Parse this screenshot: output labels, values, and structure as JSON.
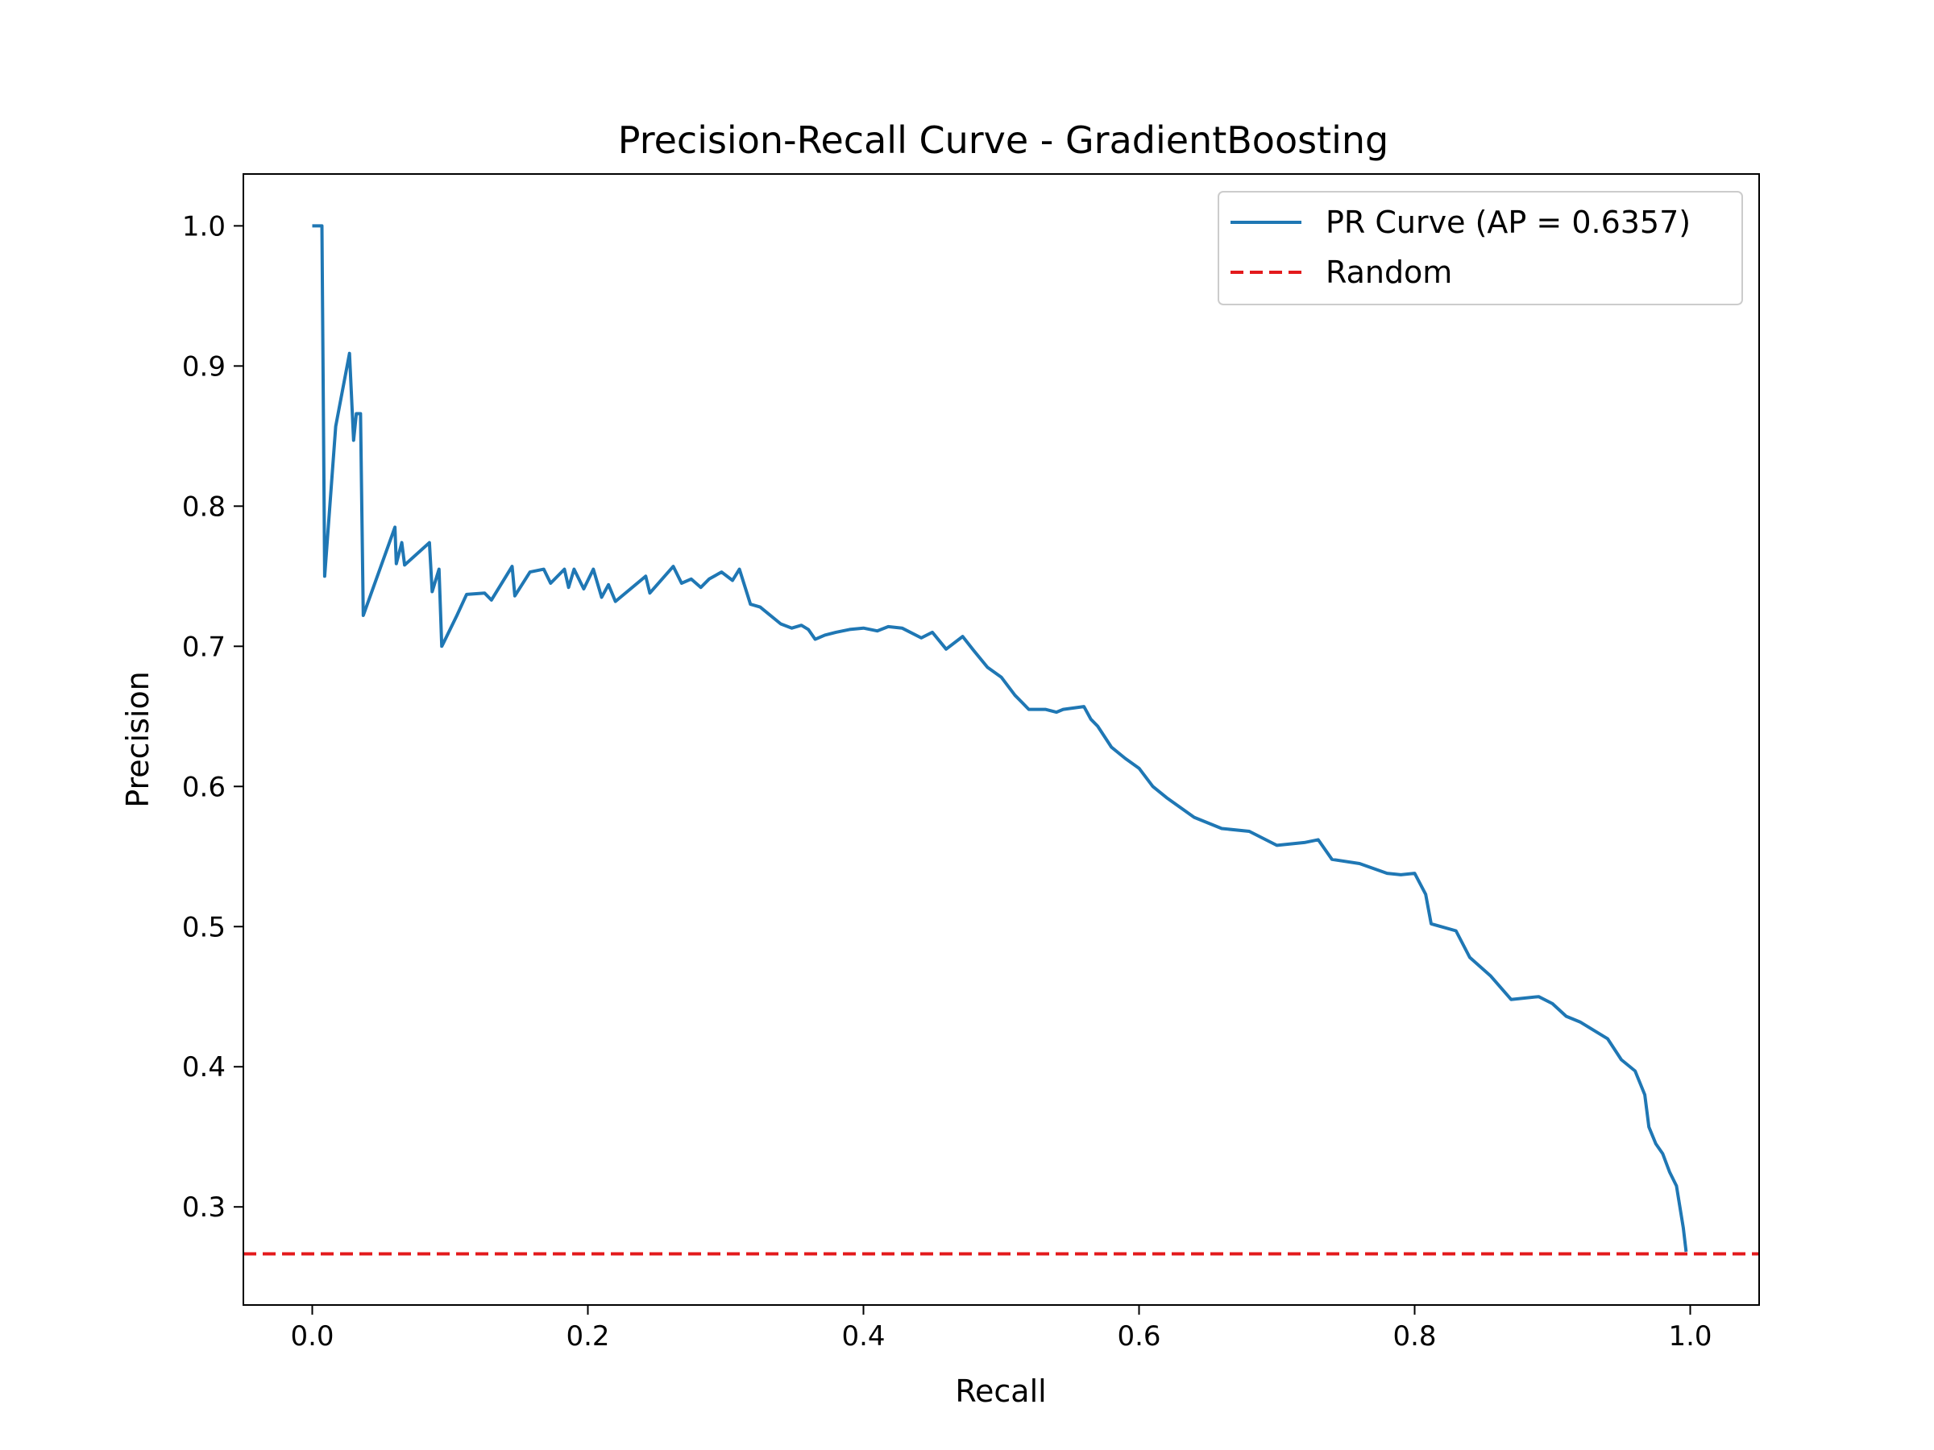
{
  "chart_data": {
    "type": "line",
    "title": "Precision-Recall Curve - GradientBoosting",
    "xlabel": "Recall",
    "ylabel": "Precision",
    "xlim": [
      -0.05,
      1.05
    ],
    "ylim": [
      0.23,
      1.037
    ],
    "xticks": [
      0.0,
      0.2,
      0.4,
      0.6,
      0.8,
      1.0
    ],
    "xtick_labels": [
      "0.0",
      "0.2",
      "0.4",
      "0.6",
      "0.8",
      "1.0"
    ],
    "yticks": [
      0.3,
      0.4,
      0.5,
      0.6,
      0.7,
      0.8,
      0.9,
      1.0
    ],
    "ytick_labels": [
      "0.3",
      "0.4",
      "0.5",
      "0.6",
      "0.7",
      "0.8",
      "0.9",
      "1.0"
    ],
    "grid": false,
    "legend_position": "top-right",
    "series": [
      {
        "name": "PR Curve (AP = 0.6357)",
        "color": "#1f77b4",
        "style": "solid",
        "x": [
          0.0,
          0.007,
          0.009,
          0.017,
          0.027,
          0.03,
          0.032,
          0.035,
          0.037,
          0.06,
          0.061,
          0.065,
          0.067,
          0.085,
          0.087,
          0.092,
          0.094,
          0.095,
          0.105,
          0.112,
          0.125,
          0.13,
          0.145,
          0.147,
          0.158,
          0.168,
          0.173,
          0.183,
          0.186,
          0.19,
          0.197,
          0.204,
          0.21,
          0.215,
          0.22,
          0.242,
          0.245,
          0.262,
          0.268,
          0.275,
          0.282,
          0.288,
          0.297,
          0.305,
          0.31,
          0.318,
          0.325,
          0.34,
          0.348,
          0.355,
          0.36,
          0.365,
          0.372,
          0.38,
          0.39,
          0.4,
          0.41,
          0.418,
          0.428,
          0.442,
          0.45,
          0.46,
          0.472,
          0.48,
          0.49,
          0.5,
          0.51,
          0.515,
          0.52,
          0.532,
          0.54,
          0.545,
          0.56,
          0.565,
          0.57,
          0.58,
          0.59,
          0.6,
          0.61,
          0.62,
          0.64,
          0.66,
          0.68,
          0.7,
          0.72,
          0.73,
          0.74,
          0.76,
          0.78,
          0.79,
          0.8,
          0.808,
          0.812,
          0.83,
          0.84,
          0.855,
          0.87,
          0.89,
          0.9,
          0.91,
          0.92,
          0.94,
          0.95,
          0.96,
          0.967,
          0.97,
          0.975,
          0.98,
          0.985,
          0.99,
          0.995,
          0.997
        ],
        "y": [
          1.0,
          1.0,
          0.75,
          0.857,
          0.909,
          0.847,
          0.866,
          0.866,
          0.722,
          0.785,
          0.759,
          0.774,
          0.758,
          0.774,
          0.739,
          0.755,
          0.7,
          0.702,
          0.722,
          0.737,
          0.738,
          0.733,
          0.757,
          0.736,
          0.753,
          0.755,
          0.745,
          0.755,
          0.742,
          0.755,
          0.741,
          0.755,
          0.735,
          0.744,
          0.732,
          0.75,
          0.738,
          0.757,
          0.745,
          0.748,
          0.742,
          0.748,
          0.753,
          0.747,
          0.755,
          0.73,
          0.728,
          0.716,
          0.713,
          0.715,
          0.712,
          0.705,
          0.708,
          0.71,
          0.712,
          0.713,
          0.711,
          0.714,
          0.713,
          0.706,
          0.71,
          0.698,
          0.707,
          0.697,
          0.685,
          0.678,
          0.665,
          0.66,
          0.655,
          0.655,
          0.653,
          0.655,
          0.657,
          0.648,
          0.643,
          0.628,
          0.62,
          0.613,
          0.6,
          0.592,
          0.578,
          0.57,
          0.568,
          0.558,
          0.56,
          0.562,
          0.548,
          0.545,
          0.538,
          0.537,
          0.538,
          0.523,
          0.502,
          0.497,
          0.478,
          0.465,
          0.448,
          0.45,
          0.445,
          0.436,
          0.432,
          0.42,
          0.405,
          0.397,
          0.38,
          0.357,
          0.345,
          0.338,
          0.325,
          0.315,
          0.285,
          0.268
        ]
      },
      {
        "name": "Random",
        "color": "#e31a1c",
        "style": "dashed",
        "y": 0.2665
      }
    ]
  }
}
